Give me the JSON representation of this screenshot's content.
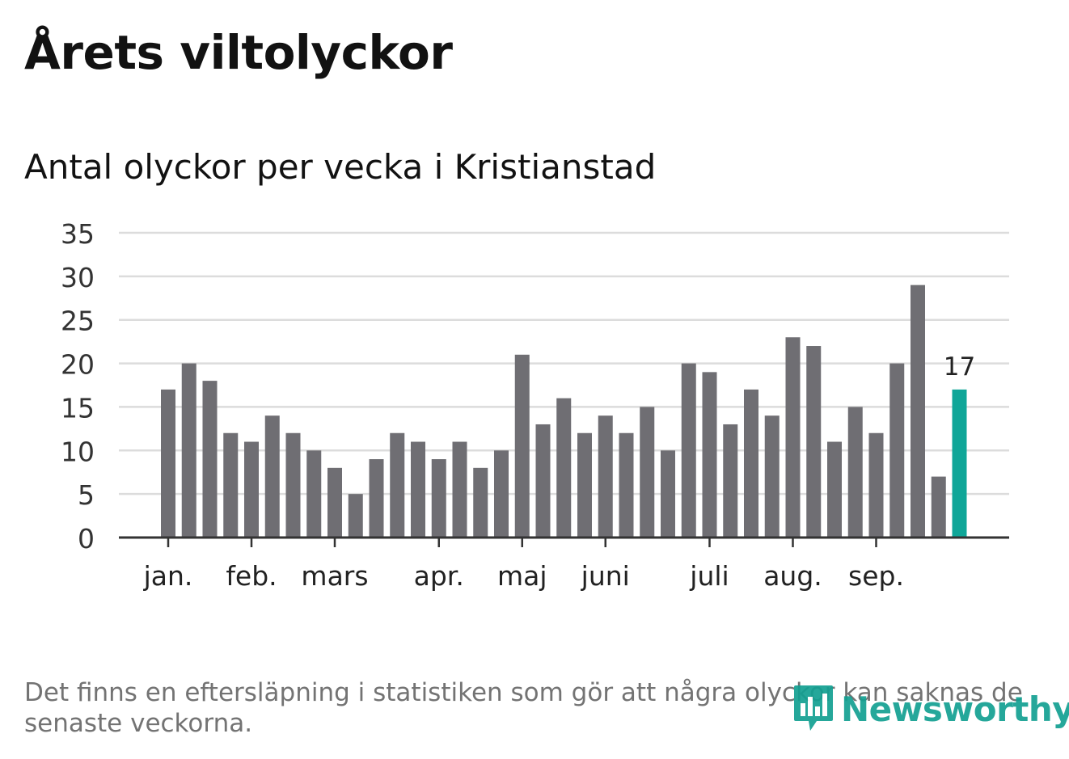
{
  "header": {
    "title": "Årets viltolyckor",
    "subtitle": "Antal olyckor per vecka i Kristianstad"
  },
  "footer": {
    "note": "Det finns en eftersläpning i statistiken som gör att några olyckor kan saknas de senaste veckorna.",
    "logo_text": "Newsworthy"
  },
  "colors": {
    "bar": "#6f6e73",
    "highlight": "#0fa698",
    "grid": "#dcdcdc",
    "axis": "#333333",
    "logo": "#13a092"
  },
  "chart_data": {
    "type": "bar",
    "title": "Antal olyckor per vecka i Kristianstad",
    "xlabel": "",
    "ylabel": "",
    "ylim": [
      0,
      35
    ],
    "yticks": [
      0,
      5,
      10,
      15,
      20,
      25,
      30,
      35
    ],
    "grid": true,
    "values": [
      17,
      20,
      18,
      12,
      11,
      14,
      12,
      10,
      8,
      5,
      9,
      12,
      11,
      9,
      11,
      8,
      10,
      21,
      13,
      16,
      12,
      14,
      12,
      15,
      10,
      20,
      19,
      13,
      17,
      14,
      23,
      22,
      11,
      15,
      12,
      20,
      29,
      7,
      17
    ],
    "highlight_index": 38,
    "highlight_label": "17",
    "month_labels": [
      {
        "label": "jan.",
        "bar_index": 0
      },
      {
        "label": "feb.",
        "bar_index": 4
      },
      {
        "label": "mars",
        "bar_index": 8
      },
      {
        "label": "apr.",
        "bar_index": 13
      },
      {
        "label": "maj",
        "bar_index": 17
      },
      {
        "label": "juni",
        "bar_index": 21
      },
      {
        "label": "juli",
        "bar_index": 26
      },
      {
        "label": "aug.",
        "bar_index": 30
      },
      {
        "label": "sep.",
        "bar_index": 34
      }
    ]
  }
}
